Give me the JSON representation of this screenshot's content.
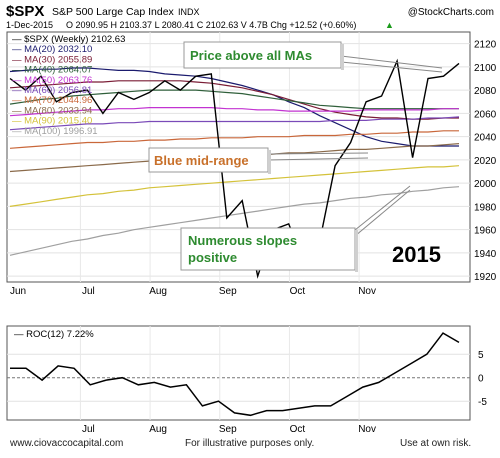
{
  "header": {
    "symbol": "$SPX",
    "name": "S&P 500 Large Cap Index",
    "exchange": "INDX",
    "source": "@StockCharts.com",
    "date": "1-Dec-2015",
    "stats": "O 2090.95  H 2103.37  L 2080.41  C 2102.63  V 4.7B  Chg +12.52 (+0.60%)",
    "stats_arrow": "▲"
  },
  "footer": {
    "left": "www.ciovaccocapital.com",
    "center": "For illustrative purposes only.",
    "right": "Use at own risk."
  },
  "annotations": {
    "price_above": "Price above all MAs",
    "blue_mid": "Blue mid-range",
    "slopes_1": "Numerous slopes",
    "slopes_2": "positive",
    "year": "2015"
  },
  "colors": {
    "price": "#000000",
    "ma20": "#1b1b6e",
    "ma30": "#7a1c35",
    "ma40": "#2f5f3a",
    "ma50": "#c233d1",
    "ma60": "#7a4ab8",
    "ma70": "#c9673a",
    "ma80": "#8a6a4a",
    "ma90": "#d4c23a",
    "ma100": "#a0a0a0",
    "callout_green": "#2e8b30",
    "callout_orange": "#c8702a",
    "roc": "#000000"
  },
  "chart_data": [
    {
      "type": "line",
      "x_labels": [
        "Jun",
        "Jul",
        "Aug",
        "Sep",
        "Oct",
        "Nov"
      ],
      "y_ticks": [
        1920,
        1940,
        1960,
        1980,
        2000,
        2020,
        2040,
        2060,
        2080,
        2100,
        2120
      ],
      "ylim": [
        1915,
        2130
      ],
      "weeks": 27,
      "series": [
        {
          "name": "$SPX (Weekly)",
          "last": "2102.63",
          "key": "price",
          "values": [
            2090,
            2080,
            2092,
            2070,
            2078,
            2080,
            2060,
            2078,
            2072,
            2078,
            2088,
            2080,
            2092,
            2094,
            1970,
            1985,
            1920,
            1960,
            1965,
            1932,
            1950,
            2015,
            2035,
            2070,
            2075,
            2105,
            2022,
            2090,
            2092,
            2103
          ]
        },
        {
          "name": "MA(20)",
          "last": "2032.10",
          "key": "ma20",
          "values": [
            2096,
            2097,
            2098,
            2098,
            2099,
            2099,
            2098,
            2097,
            2097,
            2096,
            2094,
            2093,
            2092,
            2090,
            2087,
            2084,
            2080,
            2076,
            2070,
            2065,
            2058,
            2052,
            2046,
            2040,
            2036,
            2034,
            2032,
            2032,
            2032,
            2032
          ]
        },
        {
          "name": "MA(30)",
          "last": "2055.89",
          "key": "ma30",
          "values": [
            2082,
            2083,
            2084,
            2085,
            2086,
            2087,
            2087,
            2088,
            2088,
            2088,
            2088,
            2088,
            2087,
            2086,
            2084,
            2082,
            2079,
            2076,
            2072,
            2068,
            2064,
            2061,
            2059,
            2057,
            2056,
            2056,
            2055,
            2055,
            2056,
            2056
          ]
        },
        {
          "name": "MA(40)",
          "last": "2064.07",
          "key": "ma40",
          "values": [
            2068,
            2070,
            2072,
            2073,
            2075,
            2076,
            2077,
            2078,
            2079,
            2080,
            2080,
            2080,
            2080,
            2079,
            2078,
            2077,
            2075,
            2073,
            2071,
            2069,
            2067,
            2066,
            2065,
            2064,
            2064,
            2064,
            2064,
            2064,
            2064,
            2064
          ]
        },
        {
          "name": "MA(50)",
          "last": "2063.76",
          "key": "ma50",
          "values": [
            2058,
            2059,
            2060,
            2061,
            2062,
            2063,
            2063,
            2064,
            2064,
            2065,
            2065,
            2065,
            2065,
            2065,
            2064,
            2064,
            2063,
            2063,
            2062,
            2062,
            2062,
            2062,
            2062,
            2063,
            2063,
            2063,
            2063,
            2063,
            2064,
            2064
          ]
        },
        {
          "name": "MA(60)",
          "last": "2056.81",
          "key": "ma60",
          "values": [
            2046,
            2047,
            2048,
            2049,
            2050,
            2051,
            2051,
            2052,
            2052,
            2053,
            2053,
            2053,
            2053,
            2053,
            2053,
            2053,
            2053,
            2053,
            2053,
            2053,
            2053,
            2054,
            2054,
            2054,
            2055,
            2055,
            2055,
            2056,
            2056,
            2057
          ]
        },
        {
          "name": "MA(70)",
          "last": "2044.96",
          "key": "ma70",
          "values": [
            2030,
            2031,
            2032,
            2033,
            2034,
            2035,
            2035,
            2036,
            2036,
            2037,
            2037,
            2038,
            2038,
            2039,
            2039,
            2039,
            2040,
            2040,
            2040,
            2041,
            2041,
            2041,
            2042,
            2042,
            2043,
            2043,
            2044,
            2044,
            2045,
            2045
          ]
        },
        {
          "name": "MA(80)",
          "last": "2033.94",
          "key": "ma80",
          "values": [
            2010,
            2011,
            2012,
            2013,
            2014,
            2015,
            2016,
            2017,
            2018,
            2019,
            2019,
            2020,
            2021,
            2022,
            2023,
            2023,
            2024,
            2025,
            2026,
            2026,
            2027,
            2028,
            2029,
            2029,
            2030,
            2031,
            2032,
            2032,
            2033,
            2034
          ]
        },
        {
          "name": "MA(90)",
          "last": "2015.40",
          "key": "ma90",
          "values": [
            1980,
            1982,
            1984,
            1986,
            1988,
            1990,
            1991,
            1993,
            1994,
            1996,
            1997,
            1998,
            1999,
            2000,
            2001,
            2002,
            2003,
            2004,
            2005,
            2006,
            2007,
            2008,
            2009,
            2010,
            2011,
            2012,
            2013,
            2014,
            2014,
            2015
          ]
        },
        {
          "name": "MA(100)",
          "last": "1996.91",
          "key": "ma100",
          "values": [
            1938,
            1941,
            1944,
            1947,
            1950,
            1952,
            1955,
            1957,
            1960,
            1962,
            1964,
            1966,
            1968,
            1970,
            1972,
            1974,
            1976,
            1978,
            1980,
            1982,
            1983,
            1985,
            1987,
            1988,
            1990,
            1991,
            1993,
            1994,
            1996,
            1997
          ]
        }
      ]
    },
    {
      "type": "line",
      "x_labels": [
        "Jul",
        "Aug",
        "Sep",
        "Oct",
        "Nov"
      ],
      "y_ticks": [
        -5,
        0,
        5
      ],
      "ylim": [
        -9,
        11
      ],
      "series": [
        {
          "name": "ROC(12)",
          "last": "7.22%",
          "key": "roc",
          "values": [
            2,
            2,
            -0.5,
            2.5,
            2,
            -1.5,
            -0.5,
            0,
            -1.5,
            -1,
            -2,
            -1.5,
            -6,
            -5,
            -7.5,
            -8,
            -7,
            -7,
            -6.5,
            -6,
            -6,
            -4,
            -2,
            -1,
            1,
            3,
            5,
            9.5,
            7.5
          ]
        }
      ]
    }
  ]
}
